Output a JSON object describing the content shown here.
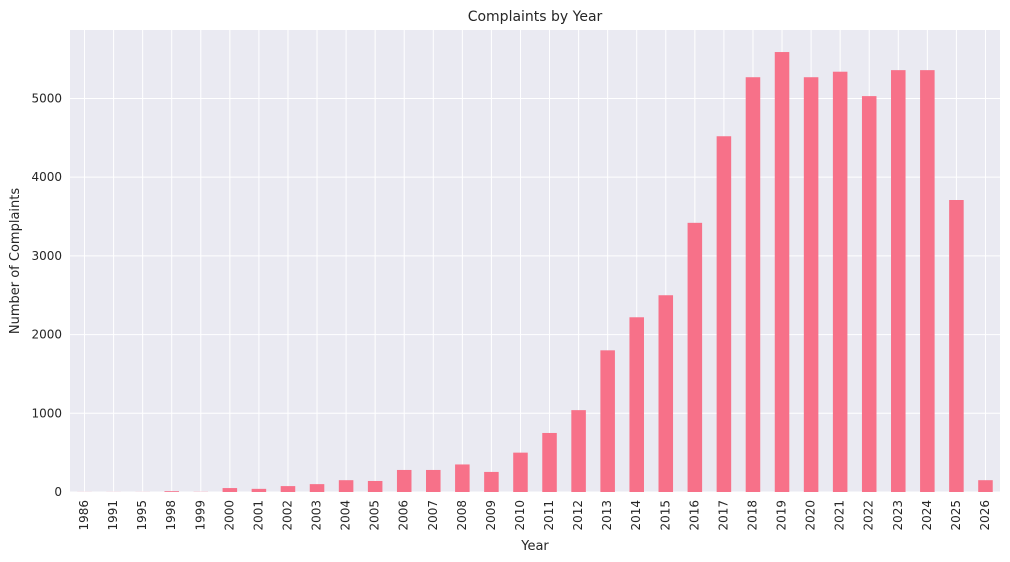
{
  "chart_data": {
    "type": "bar",
    "title": "Complaints by Year",
    "xlabel": "Year",
    "ylabel": "Number of Complaints",
    "categories": [
      "1986",
      "1991",
      "1995",
      "1998",
      "1999",
      "2000",
      "2001",
      "2002",
      "2003",
      "2004",
      "2005",
      "2006",
      "2007",
      "2008",
      "2009",
      "2010",
      "2011",
      "2012",
      "2013",
      "2014",
      "2015",
      "2016",
      "2017",
      "2018",
      "2019",
      "2020",
      "2021",
      "2022",
      "2023",
      "2024",
      "2025",
      "2026"
    ],
    "values": [
      1,
      1,
      1,
      10,
      2,
      50,
      40,
      75,
      100,
      150,
      140,
      280,
      280,
      350,
      255,
      500,
      750,
      1040,
      1800,
      2220,
      2500,
      3420,
      4520,
      5270,
      5590,
      5270,
      5340,
      5030,
      5360,
      5360,
      3710,
      150
    ],
    "yticks": [
      0,
      1000,
      2000,
      3000,
      4000,
      5000
    ],
    "ylim": [
      0,
      5870
    ],
    "grid": true,
    "colors": {
      "bar": "#f77189",
      "plot_background": "#eaeaf2",
      "grid": "#ffffff"
    }
  }
}
